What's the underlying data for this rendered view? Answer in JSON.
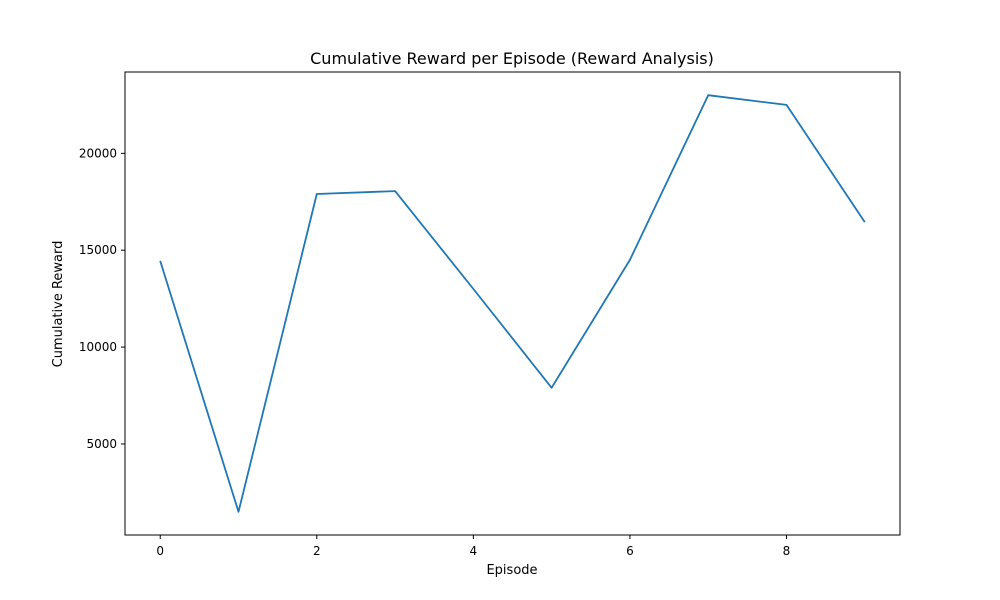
{
  "chart_data": {
    "type": "line",
    "title": "Cumulative Reward per Episode (Reward Analysis)",
    "xlabel": "Episode",
    "ylabel": "Cumulative Reward",
    "xlim": [
      -0.45,
      9.45
    ],
    "ylim": [
      300,
      24200
    ],
    "x_ticks": [
      0,
      2,
      4,
      6,
      8
    ],
    "y_ticks": [
      5000,
      10000,
      15000,
      20000
    ],
    "grid": false,
    "legend": "none",
    "series": [
      {
        "color": "#1f77b4",
        "x": [
          0,
          1,
          2,
          3,
          4,
          5,
          6,
          7,
          8,
          9
        ],
        "values": [
          14450,
          1500,
          17900,
          18050,
          13000,
          7900,
          14500,
          23000,
          22500,
          16450
        ]
      }
    ]
  }
}
